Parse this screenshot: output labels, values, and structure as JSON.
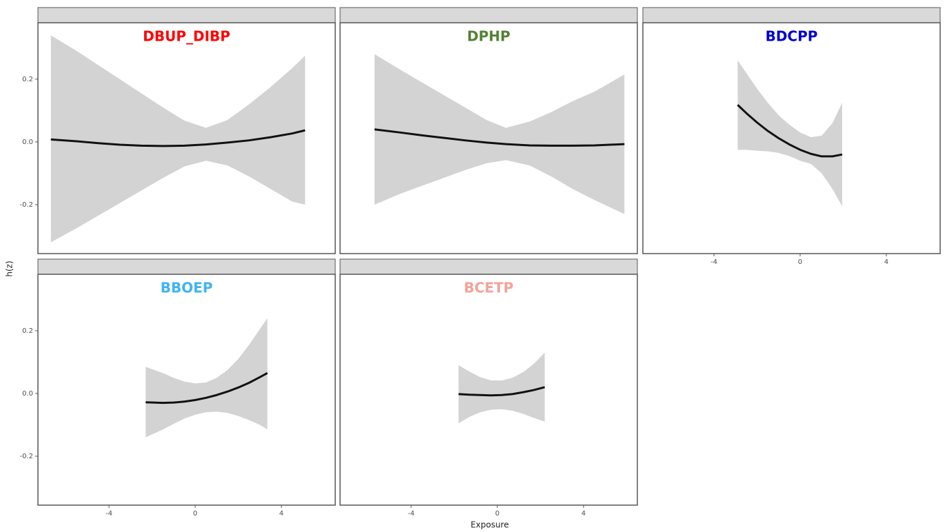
{
  "shared_axes": {
    "ylabel": "h(z)",
    "xlabel": "Exposure"
  },
  "chart_data": [
    {
      "type": "line",
      "title": "DBUP_DIBP",
      "title_color": "#ff0000",
      "color": "#111111",
      "band_color": "#d3d3d3",
      "x": [
        -6.7,
        -5.5,
        -4.5,
        -3.5,
        -2.5,
        -1.5,
        -0.5,
        0.5,
        1.5,
        2.5,
        3.5,
        4.5,
        5.1
      ],
      "values": [
        0.008,
        0.002,
        -0.004,
        -0.009,
        -0.012,
        -0.013,
        -0.012,
        -0.008,
        -0.002,
        0.005,
        0.015,
        0.027,
        0.037
      ],
      "upper": [
        0.34,
        0.29,
        0.245,
        0.2,
        0.155,
        0.11,
        0.068,
        0.045,
        0.07,
        0.12,
        0.175,
        0.235,
        0.275
      ],
      "lower": [
        -0.32,
        -0.275,
        -0.235,
        -0.195,
        -0.155,
        -0.115,
        -0.078,
        -0.06,
        -0.075,
        -0.11,
        -0.15,
        -0.19,
        -0.2
      ],
      "xlim": [
        -7.3,
        6.5
      ],
      "ylim": [
        -0.356,
        0.38
      ],
      "yticks": [
        -0.2,
        {
          "value": 0,
          "label": "0.0"
        },
        0.2
      ]
    },
    {
      "type": "line",
      "title": "DPHP",
      "title_color": "#548235",
      "color": "#111111",
      "band_color": "#d3d3d3",
      "x": [
        -5.7,
        -4.5,
        -3.5,
        -2.5,
        -1.5,
        -0.5,
        0.4,
        1.5,
        2.5,
        3.5,
        4.5,
        5.9
      ],
      "values": [
        0.04,
        0.03,
        0.021,
        0.013,
        0.005,
        -0.002,
        -0.007,
        -0.011,
        -0.012,
        -0.012,
        -0.011,
        -0.007
      ],
      "upper": [
        0.28,
        0.23,
        0.19,
        0.15,
        0.11,
        0.07,
        0.045,
        0.065,
        0.095,
        0.13,
        0.16,
        0.215
      ],
      "lower": [
        -0.2,
        -0.165,
        -0.14,
        -0.115,
        -0.09,
        -0.068,
        -0.058,
        -0.075,
        -0.11,
        -0.15,
        -0.185,
        -0.23
      ],
      "xlim": [
        -7.3,
        6.5
      ],
      "ylim": [
        -0.356,
        0.38
      ]
    },
    {
      "type": "line",
      "title": "BDCPP",
      "title_color": "#0000cc",
      "color": "#111111",
      "band_color": "#d3d3d3",
      "x": [
        -2.9,
        -2.5,
        -2,
        -1.5,
        -1,
        -0.5,
        0,
        0.5,
        1,
        1.5,
        1.95
      ],
      "values": [
        0.118,
        0.092,
        0.062,
        0.035,
        0.012,
        -0.008,
        -0.025,
        -0.038,
        -0.046,
        -0.046,
        -0.04
      ],
      "upper": [
        0.26,
        0.22,
        0.17,
        0.125,
        0.085,
        0.055,
        0.03,
        0.015,
        0.02,
        0.06,
        0.125
      ],
      "lower": [
        -0.025,
        -0.025,
        -0.028,
        -0.03,
        -0.035,
        -0.045,
        -0.06,
        -0.07,
        -0.1,
        -0.15,
        -0.205
      ],
      "xlim": [
        -7.3,
        6.5
      ],
      "ylim": [
        -0.356,
        0.38
      ],
      "xticks": [
        -4,
        0,
        4
      ]
    },
    {
      "type": "line",
      "title": "BBOEP",
      "title_color": "#3fb4f0",
      "color": "#111111",
      "band_color": "#d3d3d3",
      "x": [
        -2.3,
        -1.5,
        -1,
        -0.5,
        0,
        0.5,
        1,
        1.5,
        2,
        2.5,
        3,
        3.35
      ],
      "values": [
        -0.028,
        -0.03,
        -0.029,
        -0.026,
        -0.021,
        -0.014,
        -0.005,
        0.006,
        0.019,
        0.034,
        0.052,
        0.065
      ],
      "upper": [
        0.085,
        0.065,
        0.05,
        0.038,
        0.032,
        0.035,
        0.05,
        0.075,
        0.11,
        0.155,
        0.205,
        0.24
      ],
      "lower": [
        -0.14,
        -0.115,
        -0.097,
        -0.08,
        -0.068,
        -0.06,
        -0.058,
        -0.062,
        -0.072,
        -0.085,
        -0.1,
        -0.115
      ],
      "xlim": [
        -7.3,
        6.5
      ],
      "ylim": [
        -0.356,
        0.38
      ],
      "yticks": [
        -0.2,
        {
          "value": 0,
          "label": "0.0"
        },
        0.2
      ],
      "xticks": [
        -4,
        0,
        4
      ]
    },
    {
      "type": "line",
      "title": "BCETP",
      "title_color": "#f4a29a",
      "color": "#111111",
      "band_color": "#d3d3d3",
      "x": [
        -1.8,
        -1.3,
        -0.8,
        -0.3,
        0.2,
        0.7,
        1.2,
        1.7,
        2.2
      ],
      "values": [
        -0.002,
        -0.004,
        -0.005,
        -0.006,
        -0.005,
        -0.002,
        0.004,
        0.011,
        0.02
      ],
      "upper": [
        0.09,
        0.07,
        0.052,
        0.042,
        0.041,
        0.05,
        0.068,
        0.095,
        0.13
      ],
      "lower": [
        -0.095,
        -0.075,
        -0.06,
        -0.052,
        -0.05,
        -0.055,
        -0.065,
        -0.078,
        -0.09
      ],
      "xlim": [
        -7.3,
        6.5
      ],
      "ylim": [
        -0.356,
        0.38
      ],
      "xticks": [
        -4,
        0,
        4
      ]
    }
  ]
}
